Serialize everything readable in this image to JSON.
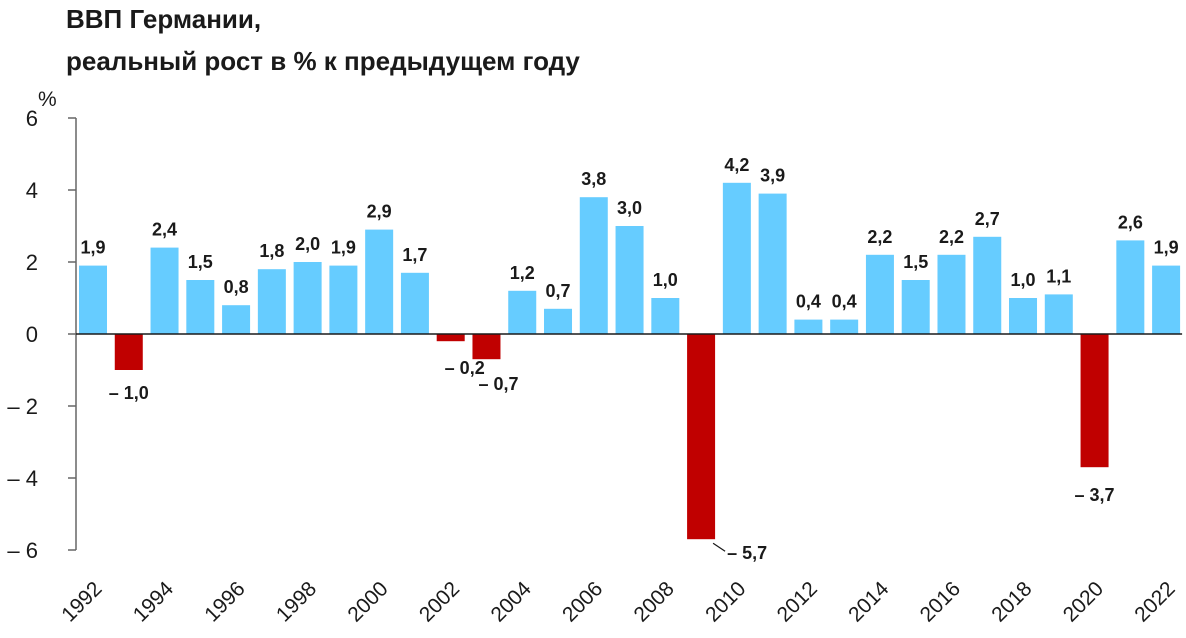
{
  "title_line1": "ВВП Германии,",
  "title_line2": "реальный рост в % к предыдущем году",
  "colors": {
    "positive": "#66CCFF",
    "negative": "#C00000",
    "axis": "#666666"
  },
  "chart_data": {
    "type": "bar",
    "title": "ВВП Германии, реальный рост в % к предыдущем году",
    "ylabel": "%",
    "xlabel": "",
    "ylim": [
      -6,
      6
    ],
    "yticks": [
      6,
      4,
      2,
      0,
      -2,
      -4,
      -6
    ],
    "categories": [
      "1992",
      "1993",
      "1994",
      "1995",
      "1996",
      "1997",
      "1998",
      "1999",
      "2000",
      "2001",
      "2002",
      "2003",
      "2004",
      "2005",
      "2006",
      "2007",
      "2008",
      "2009",
      "2010",
      "2011",
      "2012",
      "2013",
      "2014",
      "2015",
      "2016",
      "2017",
      "2018",
      "2019",
      "2020",
      "2021",
      "2022"
    ],
    "x_tick_labels": [
      "1992",
      "1994",
      "1996",
      "1998",
      "2000",
      "2002",
      "2004",
      "2006",
      "2008",
      "2010",
      "2012",
      "2014",
      "2016",
      "2018",
      "2020",
      "2022"
    ],
    "values": [
      1.9,
      -1.0,
      2.4,
      1.5,
      0.8,
      1.8,
      2.0,
      1.9,
      2.9,
      1.7,
      -0.2,
      -0.7,
      1.2,
      0.7,
      3.8,
      3.0,
      1.0,
      -5.7,
      4.2,
      3.9,
      0.4,
      0.4,
      2.2,
      1.5,
      2.2,
      2.7,
      1.0,
      1.1,
      -3.7,
      2.6,
      1.9
    ],
    "data_labels": [
      "1,9",
      "– 1,0",
      "2,4",
      "1,5",
      "0,8",
      "1,8",
      "2,0",
      "1,9",
      "2,9",
      "1,7",
      "– 0,2",
      "– 0,7",
      "1,2",
      "0,7",
      "3,8",
      "3,0",
      "1,0",
      "– 5,7",
      "4,2",
      "3,9",
      "0,4",
      "0,4",
      "2,2",
      "1,5",
      "2,2",
      "2,7",
      "1,0",
      "1,1",
      "– 3,7",
      "2,6",
      "1,9"
    ],
    "grid": false,
    "legend": "none"
  }
}
